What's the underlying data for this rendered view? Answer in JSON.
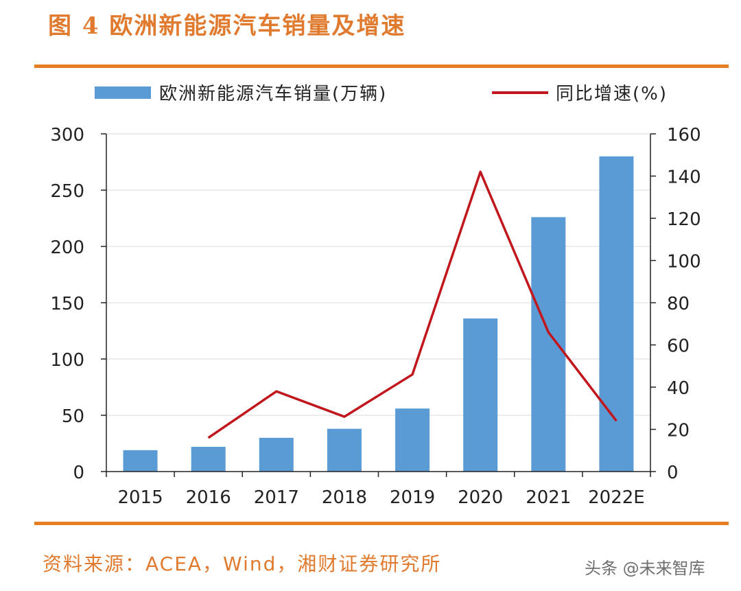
{
  "figure_title": "图 4 欧洲新能源汽车销量及增速",
  "legend": {
    "bar_label": "欧洲新能源汽车销量(万辆)",
    "line_label": "同比增速(%)"
  },
  "source": "资料来源：ACEA，Wind，湘财证券研究所",
  "watermark": "头条 @未来智库",
  "colors": {
    "accent": "#e67e22",
    "bar": "#5b9bd5",
    "line": "#c0161c"
  },
  "chart_data": {
    "type": "bar",
    "title": "图 4 欧洲新能源汽车销量及增速",
    "categories": [
      "2015",
      "2016",
      "2017",
      "2018",
      "2019",
      "2020",
      "2021",
      "2022E"
    ],
    "series": [
      {
        "name": "欧洲新能源汽车销量(万辆)",
        "type": "bar",
        "axis": "left",
        "values": [
          19,
          22,
          30,
          38,
          56,
          136,
          226,
          280
        ]
      },
      {
        "name": "同比增速(%)",
        "type": "line",
        "axis": "right",
        "values": [
          null,
          16,
          38,
          26,
          46,
          142,
          66,
          24
        ]
      }
    ],
    "y_left": {
      "min": 0,
      "max": 300,
      "ticks": [
        "0",
        "50",
        "100",
        "150",
        "200",
        "250",
        "300"
      ]
    },
    "y_right": {
      "min": 0,
      "max": 160,
      "ticks": [
        "0",
        "20",
        "40",
        "60",
        "80",
        "100",
        "120",
        "140",
        "160"
      ]
    },
    "grid": true,
    "legend_position": "top"
  }
}
